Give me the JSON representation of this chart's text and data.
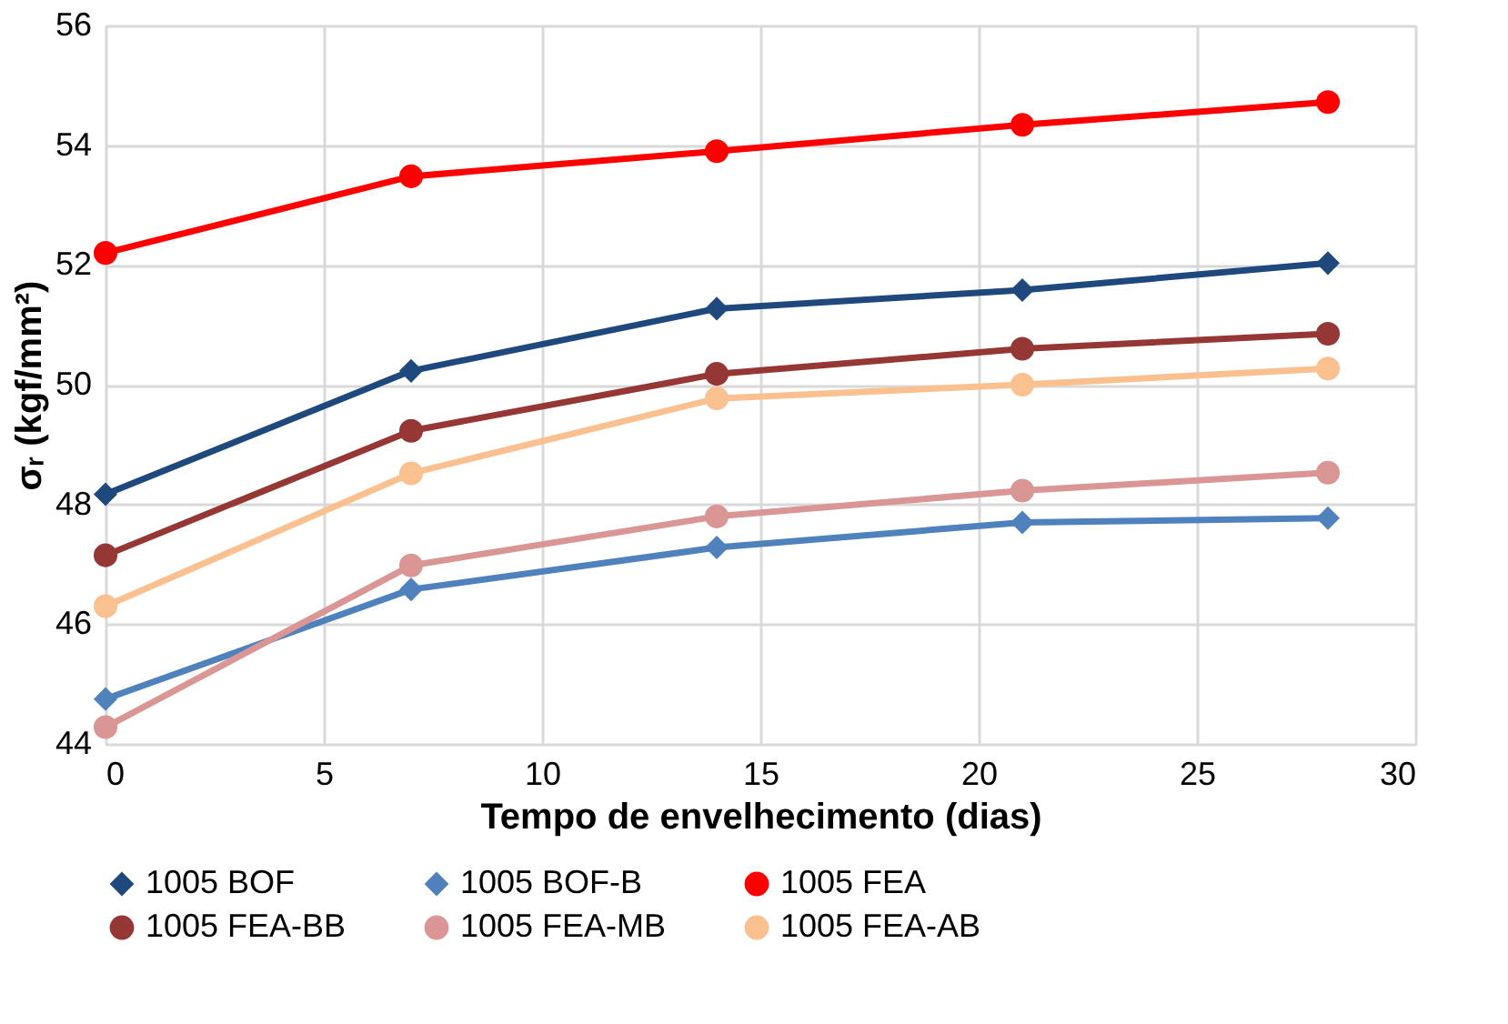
{
  "chart_data": {
    "type": "line",
    "xlabel": "Tempo de envelhecimento (dias)",
    "ylabel": "σᵣ (kgf/mm²)",
    "x": [
      0,
      7,
      14,
      21,
      28
    ],
    "xlim": [
      0,
      30
    ],
    "xticks": [
      0,
      5,
      10,
      15,
      20,
      25,
      30
    ],
    "ylim": [
      44,
      56
    ],
    "yticks": [
      44,
      46,
      48,
      50,
      52,
      54,
      56
    ],
    "grid": true,
    "legend": "bottom",
    "line_style": "solid",
    "series": [
      {
        "name": "1005 BOF",
        "color": "#1f497d",
        "marker": "diamond",
        "values": [
          48.17,
          50.23,
          51.27,
          51.58,
          52.03
        ]
      },
      {
        "name": "1005 BOF-B",
        "color": "#4f81bd",
        "marker": "diamond",
        "values": [
          44.75,
          46.58,
          47.28,
          47.7,
          47.77
        ]
      },
      {
        "name": "1005 FEA",
        "color": "#ff0000",
        "marker": "circle",
        "values": [
          52.2,
          53.48,
          53.9,
          54.34,
          54.72
        ]
      },
      {
        "name": "1005 FEA-BB",
        "color": "#953735",
        "marker": "circle",
        "values": [
          47.15,
          49.23,
          50.18,
          50.6,
          50.85
        ]
      },
      {
        "name": "1005 FEA-MB",
        "color": "#d99694",
        "marker": "circle",
        "values": [
          44.28,
          46.98,
          47.8,
          48.23,
          48.53
        ]
      },
      {
        "name": "1005 FEA-AB",
        "color": "#fac090",
        "marker": "circle",
        "values": [
          46.3,
          48.52,
          49.77,
          50.0,
          50.27
        ]
      }
    ]
  }
}
